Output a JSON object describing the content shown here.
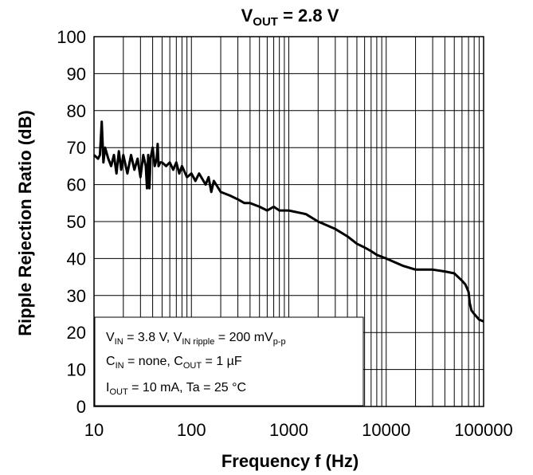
{
  "chart_data": {
    "type": "line",
    "title": "VOUT = 2.8 V",
    "title_parts": {
      "main": "V",
      "sub": "OUT",
      "rest": " = 2.8 V"
    },
    "xlabel": "Frequency f (Hz)",
    "ylabel": "Ripple Rejection Ratio (dB)",
    "xscale": "log",
    "xlim": [
      10,
      100000
    ],
    "ylim": [
      0,
      100
    ],
    "grid": true,
    "xticks": [
      10,
      100,
      1000,
      10000,
      100000
    ],
    "xtick_labels": [
      "10",
      "100",
      "1000",
      "10000",
      "100000"
    ],
    "yticks": [
      0,
      10,
      20,
      30,
      40,
      50,
      60,
      70,
      80,
      90,
      100
    ],
    "ytick_labels": [
      "0",
      "10",
      "20",
      "30",
      "40",
      "50",
      "60",
      "70",
      "80",
      "90",
      "100"
    ],
    "series": [
      {
        "color": "#000000",
        "x": [
          10,
          11,
          11.5,
          12,
          12.5,
          13,
          14,
          15,
          16,
          17,
          18,
          19,
          20,
          22,
          24,
          26,
          28,
          30,
          32,
          34,
          35,
          36,
          37,
          38,
          40,
          42,
          44,
          45,
          46,
          48,
          50,
          55,
          60,
          65,
          70,
          75,
          80,
          90,
          100,
          110,
          120,
          140,
          150,
          160,
          170,
          200,
          250,
          300,
          350,
          400,
          500,
          600,
          700,
          800,
          1000,
          1500,
          2000,
          3000,
          4000,
          5000,
          6000,
          7000,
          8000,
          10000,
          15000,
          20000,
          30000,
          40000,
          50000,
          60000,
          65000,
          70000,
          72000,
          75000,
          80000,
          90000,
          100000
        ],
        "y": [
          68,
          67,
          68,
          77,
          66,
          70,
          67,
          65,
          68,
          63,
          69,
          64,
          68,
          63,
          68,
          64,
          67,
          62,
          68,
          65,
          59,
          68,
          59,
          67,
          70,
          65,
          67,
          71,
          65,
          66,
          66,
          65,
          66,
          64,
          66,
          63,
          65,
          62,
          63,
          61,
          63,
          60,
          62,
          58,
          61,
          58,
          57,
          56,
          55,
          55,
          54,
          53,
          54,
          53,
          53,
          52,
          50,
          48,
          46,
          44,
          43,
          42,
          41,
          40,
          38,
          37,
          37,
          36.5,
          36,
          34,
          33,
          31,
          28,
          26,
          25,
          23.5,
          23
        ]
      }
    ],
    "annotation_lines": [
      [
        {
          "t": "V"
        },
        {
          "t": "IN",
          "sub": true
        },
        {
          "t": " = 3.8 V, V"
        },
        {
          "t": "IN ripple",
          "sub": true
        },
        {
          "t": " = 200 mV"
        },
        {
          "t": "p-p",
          "sub": true
        }
      ],
      [
        {
          "t": "C"
        },
        {
          "t": "IN",
          "sub": true
        },
        {
          "t": " = none, C"
        },
        {
          "t": "OUT",
          "sub": true
        },
        {
          "t": " = 1 µF"
        }
      ],
      [
        {
          "t": "I"
        },
        {
          "t": "OUT",
          "sub": true
        },
        {
          "t": " = 10 mA, Ta = 25 °C"
        }
      ]
    ]
  }
}
